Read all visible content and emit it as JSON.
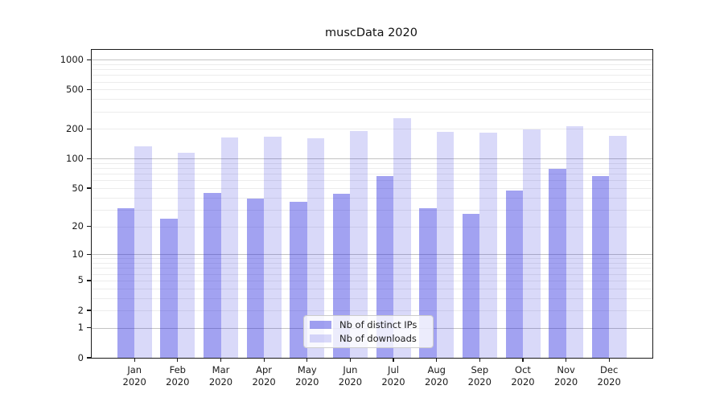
{
  "figure": {
    "background": "#ffffff",
    "axis_color": "#1a1a1a",
    "grid_major_color": "#c3c3c3",
    "grid_minor_color": "#ececec"
  },
  "chart_data": {
    "type": "bar",
    "title": "muscData 2020",
    "categories": [
      "Jan 2020",
      "Feb 2020",
      "Mar 2020",
      "Apr 2020",
      "May 2020",
      "Jun 2020",
      "Jul 2020",
      "Aug 2020",
      "Sep 2020",
      "Oct 2020",
      "Nov 2020",
      "Dec 2020"
    ],
    "series": [
      {
        "name": "Nb of distinct IPs",
        "color": "rgba(30,30,220,0.41)",
        "values": [
          31,
          24,
          45,
          39,
          36,
          44,
          66,
          31,
          27,
          47,
          79,
          67
        ]
      },
      {
        "name": "Nb of downloads",
        "color": "rgba(30,30,220,0.17)",
        "values": [
          134,
          115,
          165,
          168,
          162,
          191,
          258,
          187,
          185,
          198,
          214,
          170
        ]
      }
    ],
    "xlabel": "",
    "ylabel": "",
    "yscale": "log1p",
    "y_ticks": [
      0,
      1,
      2,
      5,
      10,
      20,
      50,
      100,
      200,
      500,
      1000
    ],
    "y_minor_gridlines": [
      2,
      3,
      4,
      5,
      6,
      7,
      8,
      9,
      20,
      30,
      40,
      50,
      60,
      70,
      80,
      90,
      200,
      300,
      400,
      500,
      600,
      700,
      800,
      900
    ],
    "y_major_gridlines": [
      1,
      10,
      100,
      1000
    ],
    "ylim": [
      0,
      1260
    ],
    "grid": "on",
    "legend_position": "lower-center"
  }
}
